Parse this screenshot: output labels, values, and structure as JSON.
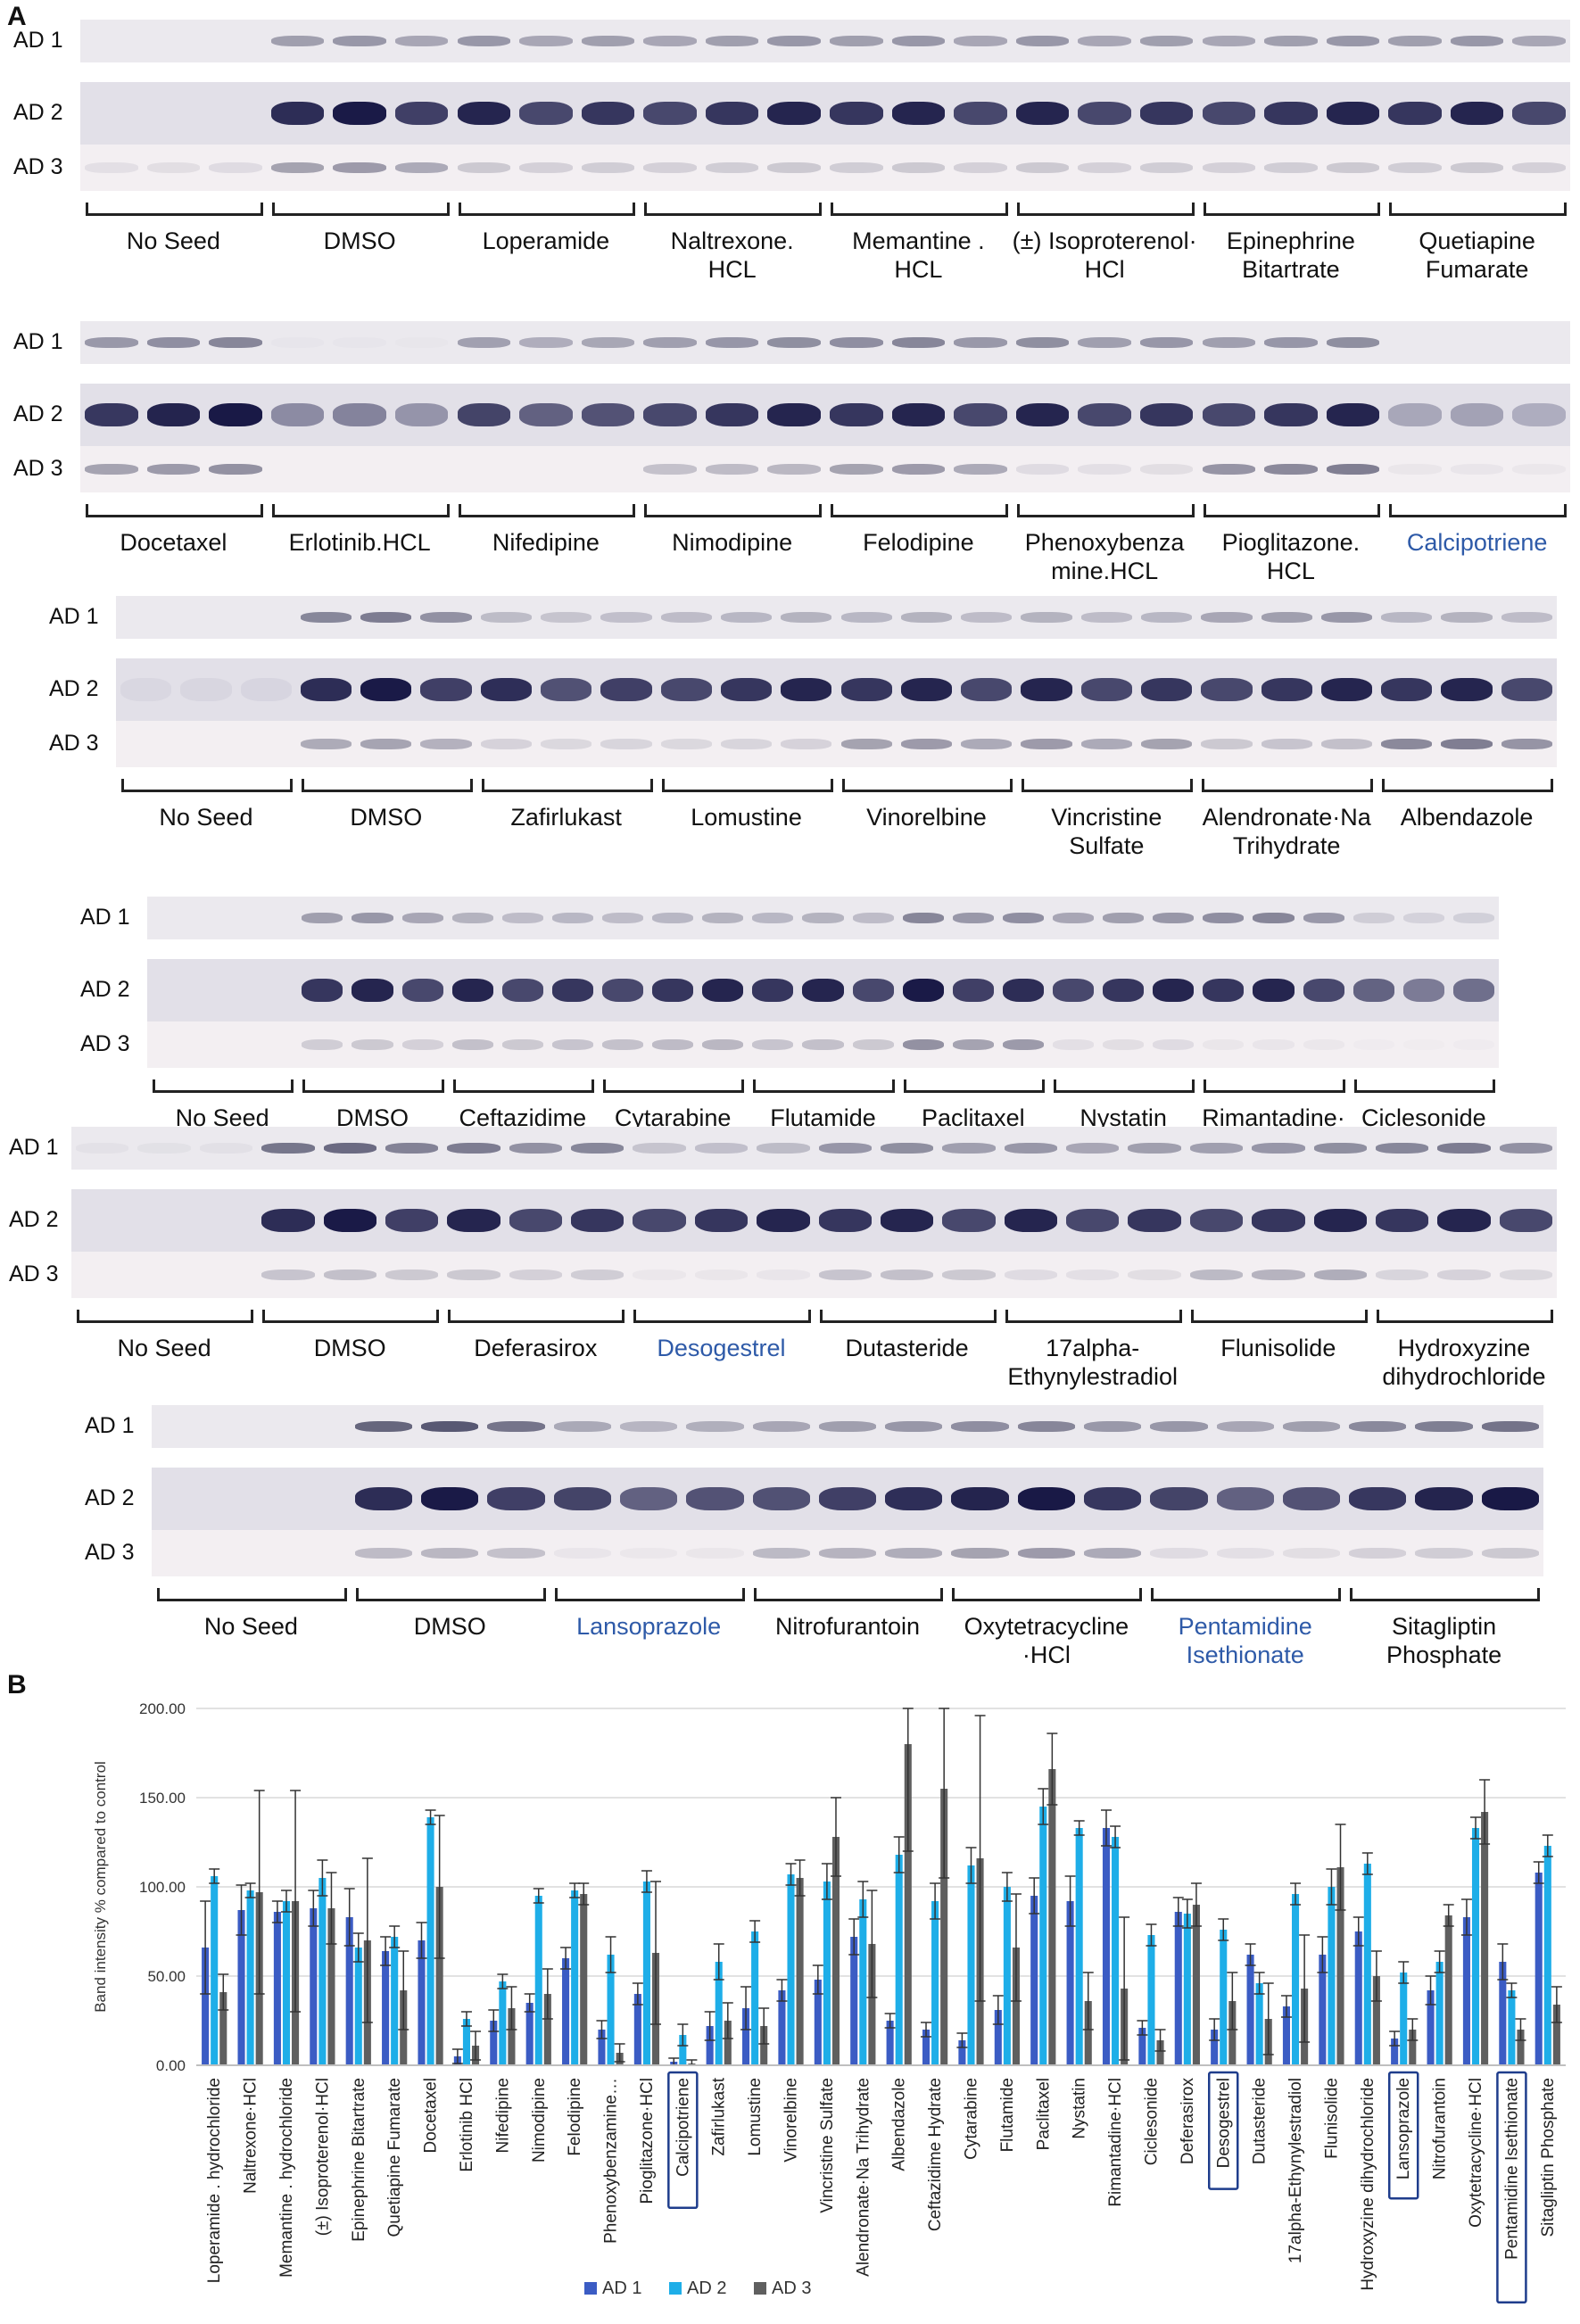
{
  "panel_a": {
    "letter": "A",
    "lane_labels": [
      "AD 1",
      "AD 2",
      "AD 3"
    ],
    "blots": [
      {
        "groups": [
          {
            "label": "No Seed",
            "hl": false
          },
          {
            "label": "DMSO",
            "hl": false
          },
          {
            "label": "Loperamide",
            "hl": false
          },
          {
            "label": "Naltrexone.\nHCL",
            "hl": false
          },
          {
            "label": "Memantine .\nHCL",
            "hl": false
          },
          {
            "label": "(±) Isoproterenol·\nHCl",
            "hl": false
          },
          {
            "label": "Epinephrine\nBitartrate",
            "hl": false
          },
          {
            "label": "Quetiapine\nFumarate",
            "hl": false
          }
        ],
        "intensity": [
          [
            0.0,
            0.45,
            0.45,
            0.45,
            0.45,
            0.45,
            0.45,
            0.45
          ],
          [
            0.0,
            0.95,
            0.9,
            0.9,
            0.9,
            0.9,
            0.9,
            0.9
          ],
          [
            0.1,
            0.45,
            0.2,
            0.2,
            0.2,
            0.2,
            0.2,
            0.2
          ]
        ]
      },
      {
        "groups": [
          {
            "label": "Docetaxel",
            "hl": false
          },
          {
            "label": "Erlotinib.HCL",
            "hl": false
          },
          {
            "label": "Nifedipine",
            "hl": false
          },
          {
            "label": "Nimodipine",
            "hl": false
          },
          {
            "label": "Felodipine",
            "hl": false
          },
          {
            "label": "Phenoxybenza\nmine.HCL",
            "hl": false
          },
          {
            "label": "Pioglitazone.\nHCL",
            "hl": false
          },
          {
            "label": "Calcipotriene",
            "hl": true
          }
        ],
        "intensity": [
          [
            0.55,
            0.02,
            0.4,
            0.5,
            0.55,
            0.5,
            0.5,
            0.0
          ],
          [
            1.0,
            0.45,
            0.75,
            0.9,
            0.9,
            0.9,
            0.9,
            0.3
          ],
          [
            0.5,
            0.0,
            0.0,
            0.3,
            0.45,
            0.1,
            0.6,
            0.05
          ]
        ]
      },
      {
        "groups": [
          {
            "label": "No Seed",
            "hl": false
          },
          {
            "label": "DMSO",
            "hl": false
          },
          {
            "label": "Zafirlukast",
            "hl": false
          },
          {
            "label": "Lomustine",
            "hl": false
          },
          {
            "label": "Vinorelbine",
            "hl": false
          },
          {
            "label": "Vincristine\nSulfate",
            "hl": false
          },
          {
            "label": "Alendronate·Na\nTrihydrate",
            "hl": false
          },
          {
            "label": "Albendazole",
            "hl": false
          }
        ],
        "intensity": [
          [
            0.0,
            0.6,
            0.25,
            0.3,
            0.3,
            0.3,
            0.45,
            0.3
          ],
          [
            0.05,
            0.95,
            0.85,
            0.9,
            0.9,
            0.9,
            0.9,
            0.9
          ],
          [
            0.0,
            0.4,
            0.15,
            0.15,
            0.45,
            0.45,
            0.25,
            0.6
          ]
        ]
      },
      {
        "groups": [
          {
            "label": "No Seed",
            "hl": false
          },
          {
            "label": "DMSO",
            "hl": false
          },
          {
            "label": "Ceftazidime\nHydrate",
            "hl": false
          },
          {
            "label": "Cytarabine",
            "hl": false
          },
          {
            "label": "Flutamide",
            "hl": false
          },
          {
            "label": "Paclitaxel",
            "hl": false
          },
          {
            "label": "Nystatin",
            "hl": false
          },
          {
            "label": "Rimantadine·\nHCl",
            "hl": false
          },
          {
            "label": "Ciclesonide",
            "hl": false
          }
        ],
        "intensity": [
          [
            0.0,
            0.45,
            0.3,
            0.3,
            0.3,
            0.55,
            0.45,
            0.55,
            0.15
          ],
          [
            0.0,
            0.9,
            0.9,
            0.9,
            0.9,
            0.95,
            0.9,
            0.9,
            0.6
          ],
          [
            0.0,
            0.2,
            0.25,
            0.3,
            0.25,
            0.5,
            0.1,
            0.05,
            0.02
          ]
        ]
      },
      {
        "groups": [
          {
            "label": "No Seed",
            "hl": false
          },
          {
            "label": "DMSO",
            "hl": false
          },
          {
            "label": "Deferasirox",
            "hl": false
          },
          {
            "label": "Desogestrel",
            "hl": true
          },
          {
            "label": "Dutasteride",
            "hl": false
          },
          {
            "label": "17alpha-\nEthynylestradiol",
            "hl": false
          },
          {
            "label": "Flunisolide",
            "hl": false
          },
          {
            "label": "Hydroxyzine\ndihydrochloride",
            "hl": false
          }
        ],
        "intensity": [
          [
            0.05,
            0.7,
            0.6,
            0.25,
            0.5,
            0.45,
            0.5,
            0.6
          ],
          [
            0.0,
            0.95,
            0.9,
            0.9,
            0.9,
            0.9,
            0.9,
            0.9
          ],
          [
            0.0,
            0.25,
            0.2,
            0.05,
            0.25,
            0.1,
            0.35,
            0.15
          ]
        ]
      },
      {
        "groups": [
          {
            "label": "No Seed",
            "hl": false
          },
          {
            "label": "DMSO",
            "hl": false
          },
          {
            "label": "Lansoprazole",
            "hl": true
          },
          {
            "label": "Nitrofurantoin",
            "hl": false
          },
          {
            "label": "Oxytetracycline\n·HCl",
            "hl": false
          },
          {
            "label": "Pentamidine\nIsethionate",
            "hl": true
          },
          {
            "label": "Sitagliptin\nPhosphate",
            "hl": false
          }
        ],
        "intensity": [
          [
            0.0,
            0.8,
            0.35,
            0.45,
            0.55,
            0.45,
            0.65
          ],
          [
            0.0,
            0.95,
            0.75,
            0.85,
            1.0,
            0.75,
            1.0
          ],
          [
            0.0,
            0.3,
            0.05,
            0.35,
            0.45,
            0.1,
            0.2
          ]
        ]
      }
    ]
  },
  "panel_b": {
    "letter": "B",
    "chart_data": {
      "type": "bar",
      "ylabel": "Band intensity % compared to control",
      "ylim": [
        0,
        200
      ],
      "yticks": [
        "0.00",
        "50.00",
        "100.00",
        "150.00",
        "200.00"
      ],
      "categories": [
        "Loperamide . hydrochloride",
        "Naltrexone·HCl",
        "Memantine . hydrochloride",
        "(±) Isoproterenol·HCl",
        "Epinephrine Bitartrate",
        "Quetiapine Fumarate",
        "Docetaxel",
        "Erlotinib HCl",
        "Nifedipine",
        "Nimodipine",
        "Felodipine",
        "Phenoxybenzamine…",
        "Pioglitazone·HCl",
        "Calcipotriene",
        "Zafirlukast",
        "Lomustine",
        "Vinorelbine",
        "Vincristine Sulfate",
        "Alendronate·Na Trihydrate",
        "Albendazole",
        "Ceftazidime Hydrate",
        "Cytarabine",
        "Flutamide",
        "Paclitaxel",
        "Nystatin",
        "Rimantadine·HCl",
        "Ciclesonide",
        "Deferasirox",
        "Desogestrel",
        "Dutasteride",
        "17alpha-Ethynylestradiol",
        "Flunisolide",
        "Hydroxyzine dihydrochloride",
        "Lansoprazole",
        "Nitrofurantoin",
        "Oxytetracycline·HCl",
        "Pentamidine Isethionate",
        "Sitagliptin Phosphate"
      ],
      "boxed": [
        "Calcipotriene",
        "Desogestrel",
        "Lansoprazole",
        "Pentamidine Isethionate"
      ],
      "series": [
        {
          "name": "AD 1",
          "color": "#3b5cc4",
          "values": [
            66,
            87,
            86,
            88,
            83,
            64,
            70,
            5,
            25,
            35,
            60,
            20,
            40,
            2,
            22,
            32,
            42,
            48,
            72,
            25,
            20,
            14,
            31,
            95,
            92,
            133,
            21,
            86,
            20,
            62,
            33,
            62,
            75,
            15,
            42,
            83,
            58,
            108
          ]
        },
        {
          "name": "AD 2",
          "color": "#1eaee8",
          "values": [
            106,
            98,
            92,
            105,
            66,
            72,
            139,
            26,
            47,
            95,
            98,
            62,
            103,
            17,
            58,
            75,
            107,
            103,
            93,
            118,
            92,
            112,
            100,
            145,
            133,
            128,
            73,
            85,
            76,
            46,
            96,
            100,
            113,
            52,
            58,
            133,
            42,
            123
          ]
        },
        {
          "name": "AD 3",
          "color": "#5f5f5f",
          "values": [
            41,
            97,
            92,
            88,
            70,
            42,
            100,
            11,
            32,
            40,
            96,
            7,
            63,
            1,
            25,
            22,
            105,
            128,
            68,
            180,
            155,
            116,
            66,
            166,
            36,
            43,
            14,
            90,
            36,
            26,
            43,
            111,
            50,
            20,
            84,
            142,
            20,
            34
          ]
        }
      ],
      "errors": [
        [
          26,
          14,
          6,
          10,
          16,
          8,
          10,
          4,
          6,
          5,
          6,
          5,
          6,
          2,
          8,
          12,
          6,
          8,
          10,
          4,
          4,
          4,
          8,
          10,
          14,
          10,
          4,
          8,
          6,
          6,
          6,
          10,
          8,
          4,
          8,
          10,
          10,
          6
        ],
        [
          4,
          4,
          6,
          10,
          8,
          6,
          4,
          4,
          4,
          4,
          4,
          10,
          6,
          6,
          10,
          6,
          6,
          10,
          10,
          10,
          10,
          10,
          8,
          10,
          4,
          6,
          6,
          8,
          6,
          6,
          6,
          10,
          6,
          6,
          6,
          6,
          4,
          6
        ],
        [
          10,
          57,
          62,
          20,
          46,
          22,
          40,
          8,
          12,
          14,
          6,
          5,
          40,
          2,
          10,
          10,
          10,
          22,
          30,
          60,
          50,
          80,
          30,
          20,
          16,
          40,
          6,
          12,
          16,
          20,
          30,
          24,
          14,
          6,
          6,
          18,
          6,
          10
        ]
      ]
    }
  }
}
